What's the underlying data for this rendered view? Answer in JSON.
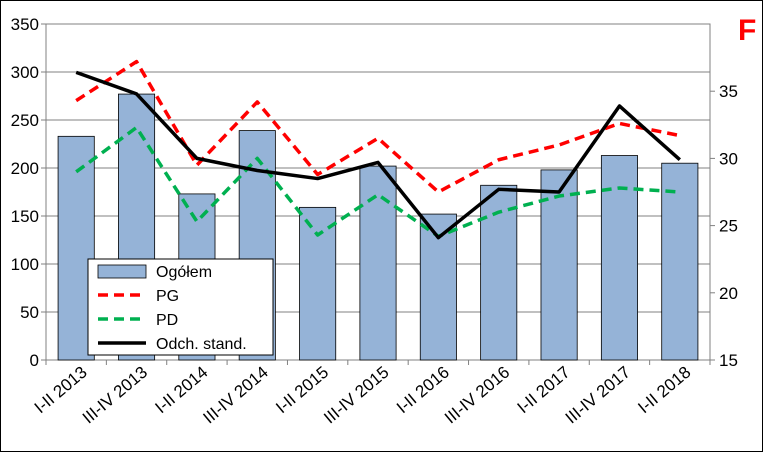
{
  "chart_data": {
    "type": "bar",
    "categories": [
      "I-II 2013",
      "III-IV 2013",
      "I-II 2014",
      "III-IV 2014",
      "I-II 2015",
      "III-IV 2015",
      "I-II 2016",
      "III-IV 2016",
      "I-II 2017",
      "III-IV 2017",
      "I-II 2018"
    ],
    "y_left": {
      "range": [
        0,
        350
      ],
      "ticks": [
        "0",
        "50",
        "100",
        "150",
        "200",
        "250",
        "300",
        "350"
      ],
      "tick_values": [
        0,
        50,
        100,
        150,
        200,
        250,
        300,
        350
      ]
    },
    "y_right": {
      "range": [
        15,
        40
      ],
      "ticks": [
        "15",
        "20",
        "25",
        "30",
        "35"
      ],
      "tick_values": [
        15,
        20,
        25,
        30,
        35
      ]
    },
    "corner_label": "F",
    "series": [
      {
        "name": "Ogółem",
        "kind": "bar",
        "axis": "left",
        "color": "#95b3d7",
        "values": [
          233,
          277,
          173,
          239,
          159,
          202,
          152,
          182,
          198,
          213,
          205
        ]
      },
      {
        "name": "PG",
        "kind": "line",
        "style": "dashed",
        "axis": "right",
        "color": "#ff0000",
        "values": [
          34.3,
          37.2,
          29.5,
          34.2,
          28.8,
          31.5,
          27.5,
          29.9,
          31.0,
          32.6,
          31.7
        ]
      },
      {
        "name": "PD",
        "kind": "line",
        "style": "dashed",
        "axis": "right",
        "color": "#00b050",
        "values": [
          29.0,
          32.3,
          25.3,
          30.0,
          24.3,
          27.3,
          24.2,
          26.0,
          27.2,
          27.8,
          27.5
        ]
      },
      {
        "name": "Odch. stand.",
        "kind": "line",
        "style": "solid",
        "axis": "right",
        "color": "#000000",
        "values": [
          36.4,
          34.8,
          30.0,
          29.1,
          28.5,
          29.7,
          24.1,
          27.7,
          27.5,
          33.9,
          29.9
        ]
      }
    ],
    "legend": {
      "position": "bottom-left",
      "entries": [
        "Ogółem",
        "PG",
        "PD",
        "Odch. stand."
      ]
    },
    "grid": true
  }
}
